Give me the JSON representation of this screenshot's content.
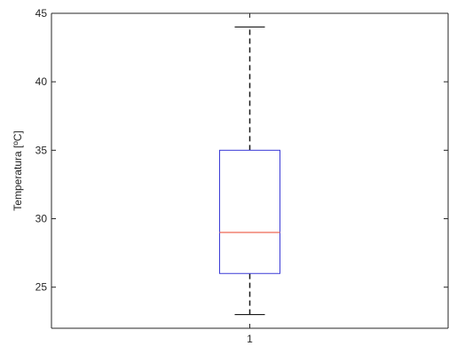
{
  "chart_data": {
    "type": "box",
    "categories": [
      "1"
    ],
    "ylabel": "Temperatura [ºC]",
    "ylim": [
      22,
      45
    ],
    "yticks": [
      25,
      30,
      35,
      40,
      45
    ],
    "series": [
      {
        "whisker_low": 23,
        "q1": 26,
        "median": 29,
        "q3": 35,
        "whisker_high": 44
      }
    ],
    "colors": {
      "box": "#3b3bd6",
      "median": "#f08070",
      "whisker": "#1a1a1a",
      "axis": "#262626"
    }
  }
}
